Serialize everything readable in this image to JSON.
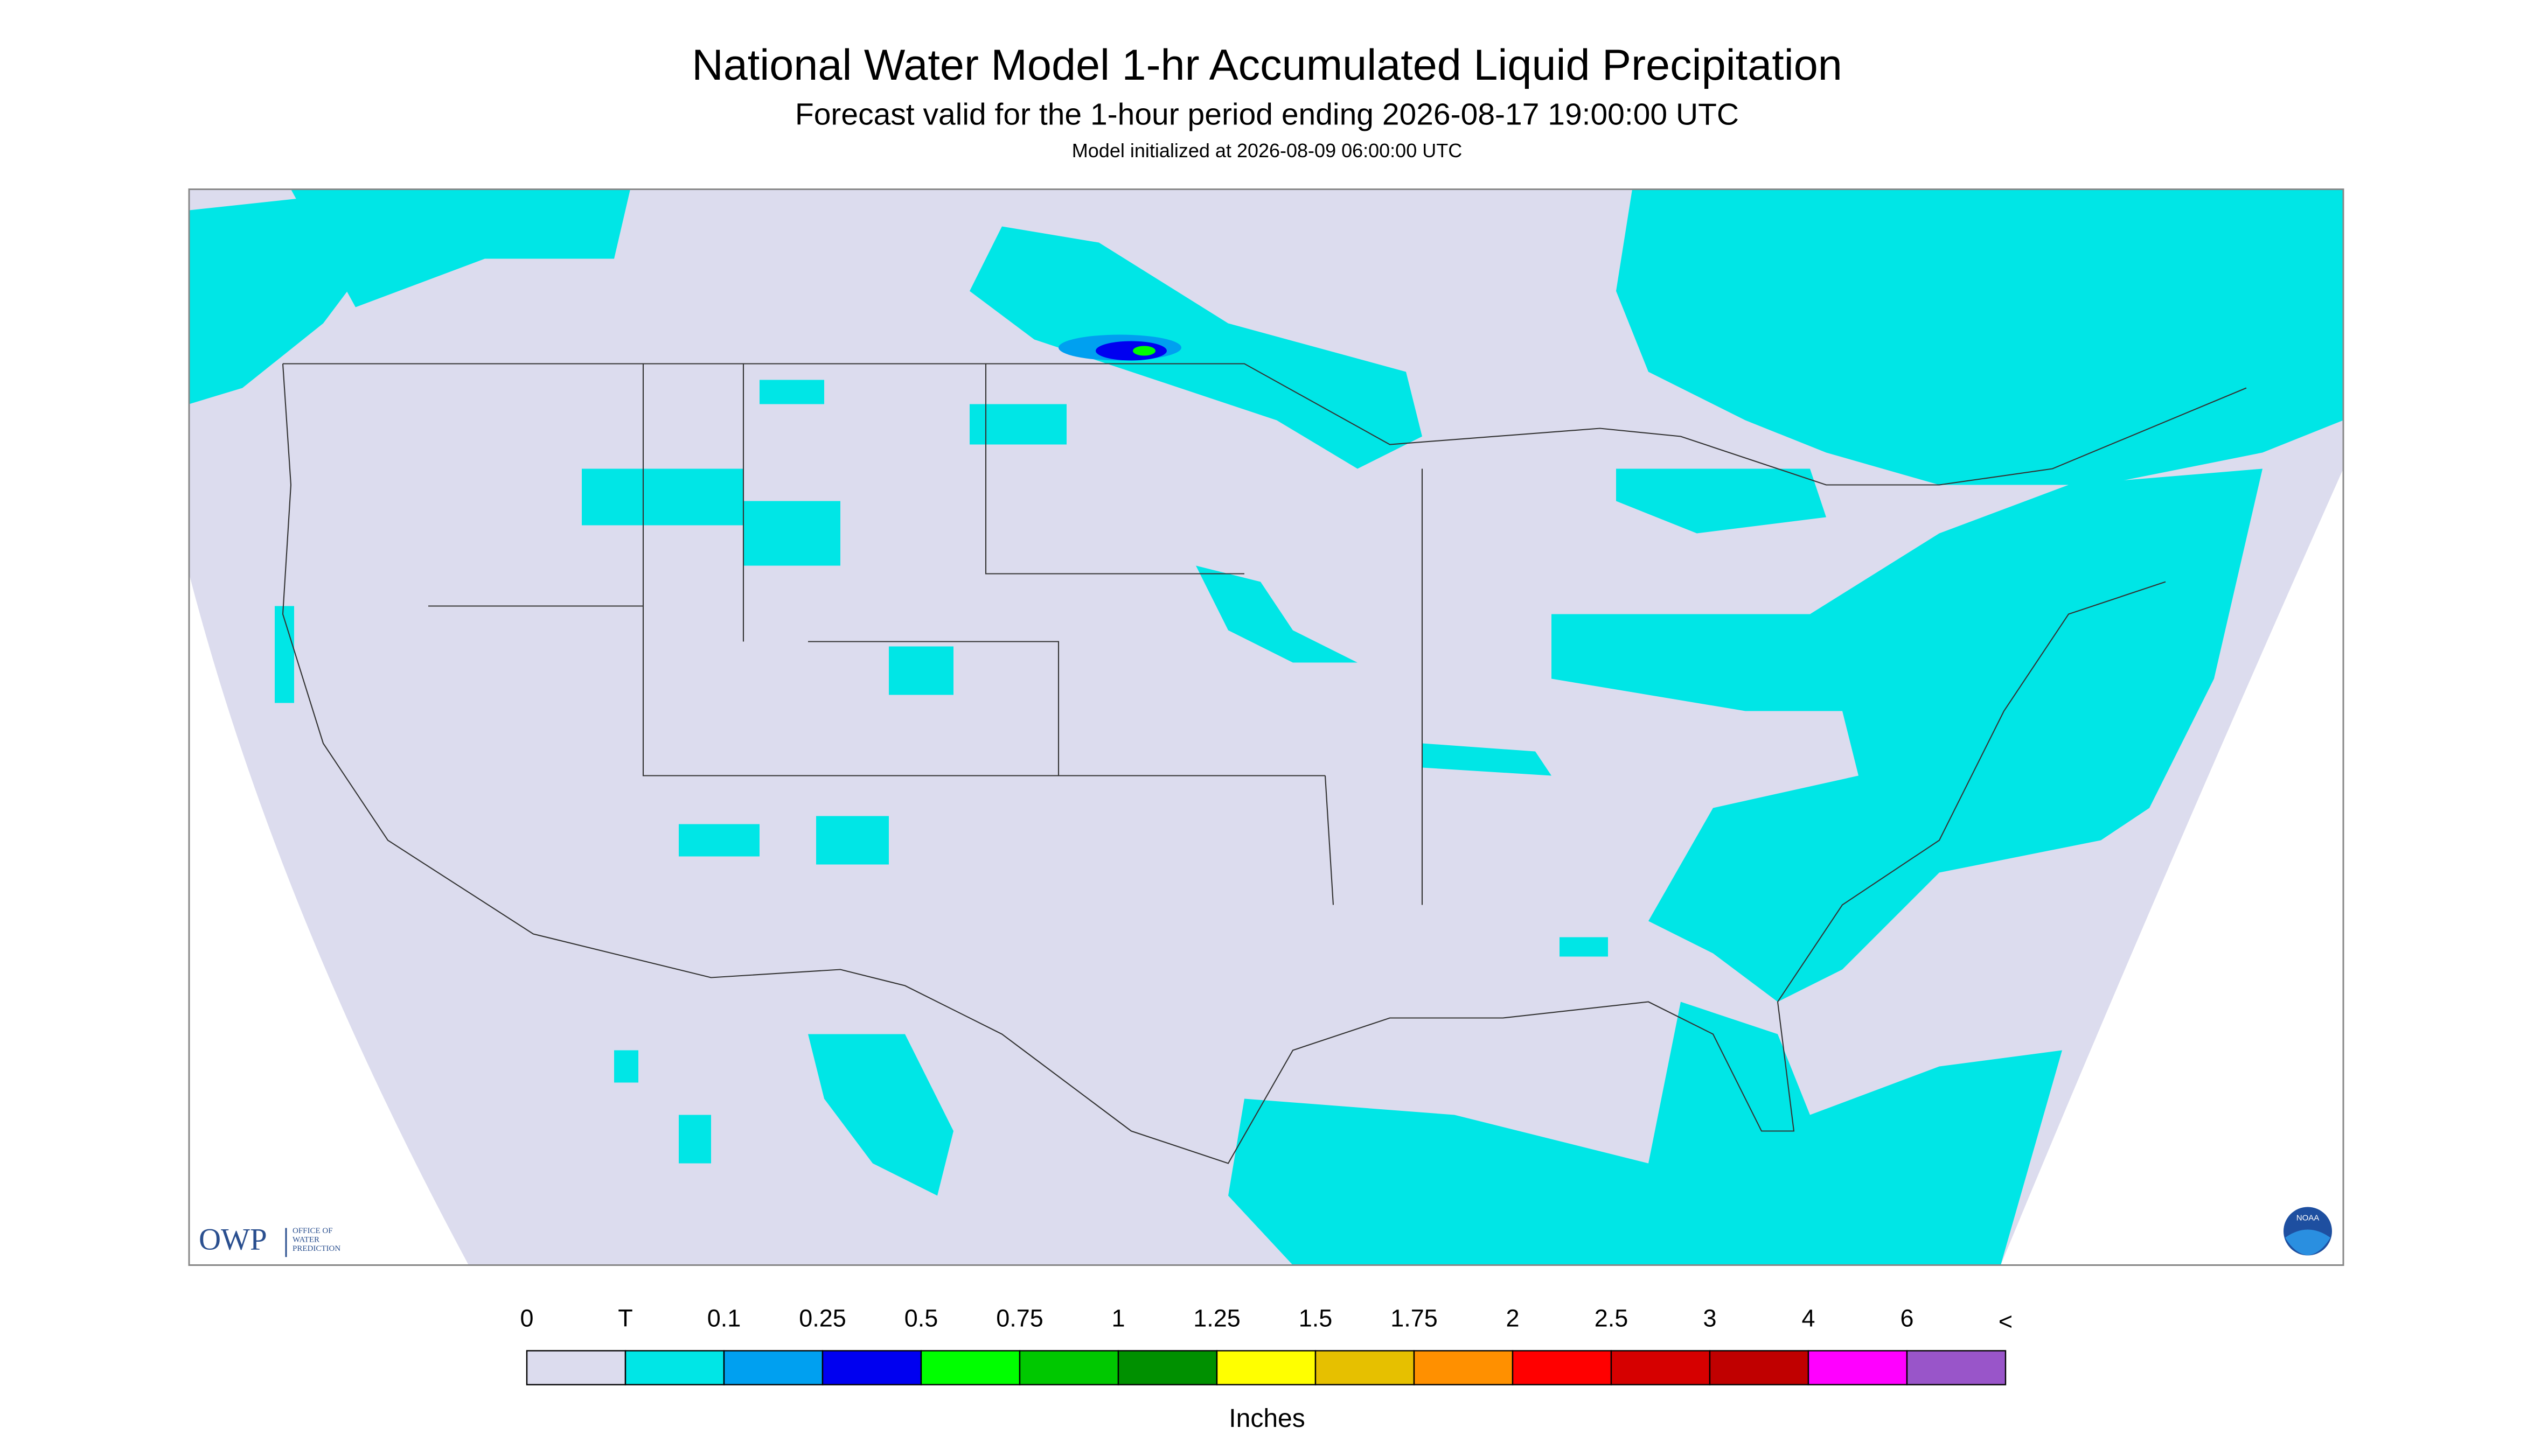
{
  "header": {
    "title": "National Water Model 1-hr Accumulated Liquid Precipitation",
    "subtitle": "Forecast valid for the 1-hour period ending 2026-08-17 19:00:00 UTC",
    "note": "Model initialized at 2026-08-09 06:00:00 UTC"
  },
  "logo": {
    "name": "OWP",
    "lines": [
      "OFFICE OF",
      "WATER",
      "PREDICTION"
    ],
    "badge": "NOAA"
  },
  "legend": {
    "labels": [
      "0",
      "T",
      "0.1",
      "0.25",
      "0.5",
      "0.75",
      "1",
      "1.25",
      "1.5",
      "1.75",
      "2",
      "2.5",
      "3",
      "4",
      "6",
      "<"
    ],
    "colors": [
      "#dcdcee",
      "#00e6e6",
      "#00a0f0",
      "#0000f0",
      "#00ff00",
      "#00c800",
      "#009000",
      "#ffff00",
      "#e6c000",
      "#ff9000",
      "#ff0000",
      "#d60000",
      "#c00000",
      "#ff00ff",
      "#9955c9"
    ],
    "unit": "Inches"
  }
}
